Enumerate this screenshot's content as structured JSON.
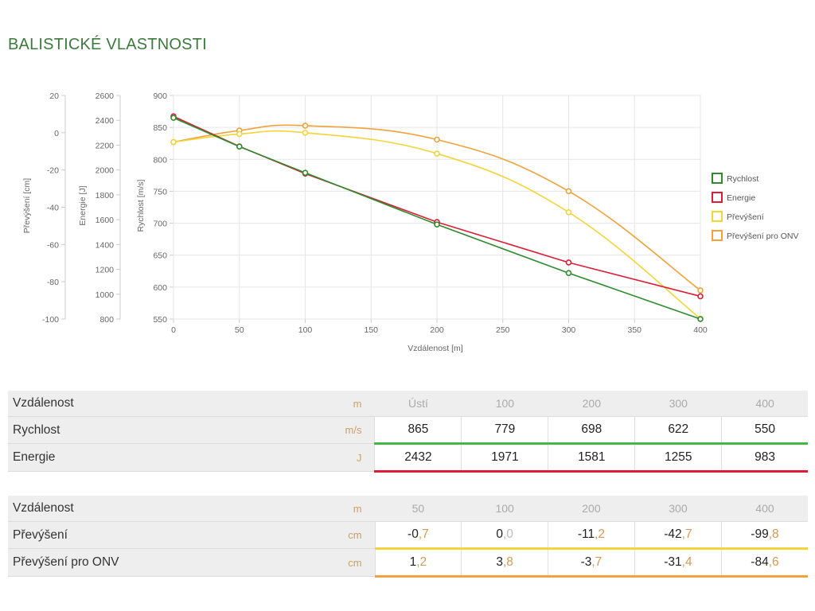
{
  "page": {
    "title": "BALISTICKÉ VLASTNOSTI"
  },
  "chart_data": {
    "type": "line",
    "x": [
      0,
      50,
      100,
      200,
      300,
      400
    ],
    "xlabel": "Vzdálenost [m]",
    "xlim": [
      0,
      400
    ],
    "xticks": [
      "0",
      "50",
      "100",
      "150",
      "200",
      "250",
      "300",
      "350",
      "400"
    ],
    "grid": true,
    "legend_position": "right",
    "axes": [
      {
        "id": "drop",
        "label": "Převýšení [cm]",
        "ylim": [
          -100,
          20
        ],
        "ticks": [
          "20",
          "0",
          "-20",
          "-40",
          "-60",
          "-80",
          "-100"
        ]
      },
      {
        "id": "energy",
        "label": "Energie [J]",
        "ylim": [
          800,
          2600
        ],
        "ticks": [
          "2600",
          "2400",
          "2200",
          "2000",
          "1800",
          "1600",
          "1400",
          "1200",
          "1000",
          "800"
        ]
      },
      {
        "id": "velocity",
        "label": "Rychlost [m/s]",
        "ylim": [
          550,
          900
        ],
        "ticks": [
          "900",
          "850",
          "800",
          "750",
          "700",
          "650",
          "600",
          "550"
        ]
      }
    ],
    "series": [
      {
        "name": "Rychlost",
        "axis": "velocity",
        "color": "#2e8b2e",
        "x": [
          0,
          50,
          100,
          200,
          300,
          400
        ],
        "values": [
          865,
          820,
          779,
          698,
          622,
          550
        ]
      },
      {
        "name": "Energie",
        "axis": "energy",
        "color": "#d91e36",
        "x": [
          0,
          50,
          100,
          200,
          300,
          400
        ],
        "values": [
          2432,
          2190,
          1971,
          1581,
          1255,
          983
        ]
      },
      {
        "name": "Převýšení",
        "axis": "drop",
        "color": "#f2d43c",
        "x": [
          0,
          50,
          100,
          200,
          300,
          400
        ],
        "values": [
          -5,
          -0.7,
          0.0,
          -11.2,
          -42.7,
          -99.8
        ]
      },
      {
        "name": "Převýšení pro ONV",
        "axis": "drop",
        "color": "#eea33c",
        "x": [
          0,
          50,
          100,
          200,
          300,
          400
        ],
        "values": [
          -5,
          1.2,
          3.8,
          -3.7,
          -31.4,
          -84.6
        ]
      }
    ]
  },
  "table1": {
    "rows": [
      {
        "label": "Vzdálenost",
        "unit": "m",
        "values": [
          [
            "Ústí",
            ""
          ],
          [
            "100",
            ""
          ],
          [
            "200",
            ""
          ],
          [
            "300",
            ""
          ],
          [
            "400",
            ""
          ]
        ]
      },
      {
        "label": "Rychlost",
        "unit": "m/s",
        "values": [
          [
            "865",
            ""
          ],
          [
            "779",
            ""
          ],
          [
            "698",
            ""
          ],
          [
            "622",
            ""
          ],
          [
            "550",
            ""
          ]
        ]
      },
      {
        "label": "Energie",
        "unit": "J",
        "values": [
          [
            "2432",
            ""
          ],
          [
            "1971",
            ""
          ],
          [
            "1581",
            ""
          ],
          [
            "1255",
            ""
          ],
          [
            "983",
            ""
          ]
        ]
      }
    ],
    "bars": [
      "#44b744",
      "#d91e36"
    ]
  },
  "table2": {
    "rows": [
      {
        "label": "Vzdálenost",
        "unit": "m",
        "values": [
          [
            "50",
            ""
          ],
          [
            "100",
            ""
          ],
          [
            "200",
            ""
          ],
          [
            "300",
            ""
          ],
          [
            "400",
            ""
          ]
        ]
      },
      {
        "label": "Převýšení",
        "unit": "cm",
        "values": [
          [
            "-0",
            ",7"
          ],
          [
            "0",
            ",0"
          ],
          [
            "-11",
            ",2"
          ],
          [
            "-42",
            ",7"
          ],
          [
            "-99",
            ",8"
          ]
        ]
      },
      {
        "label": "Převýšení pro ONV",
        "unit": "cm",
        "values": [
          [
            "1",
            ",2"
          ],
          [
            "3",
            ",8"
          ],
          [
            "-3",
            ",7"
          ],
          [
            "-31",
            ",4"
          ],
          [
            "-84",
            ",6"
          ]
        ]
      }
    ],
    "bars": [
      "#f2d43c",
      "#eea33c"
    ]
  }
}
